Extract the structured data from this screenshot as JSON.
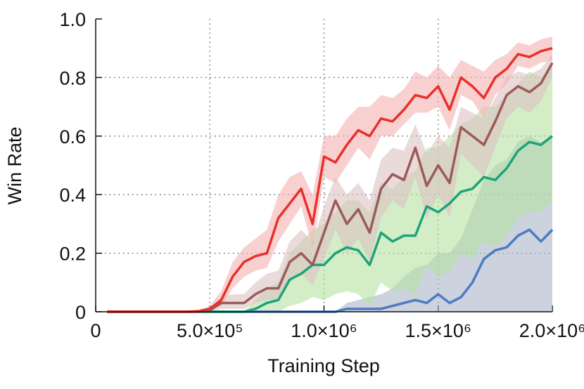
{
  "chart_data": {
    "type": "line",
    "xlabel": "Training Step",
    "ylabel": "Win Rate",
    "x": [
      50000,
      100000,
      150000,
      200000,
      250000,
      300000,
      350000,
      400000,
      450000,
      500000,
      550000,
      600000,
      650000,
      700000,
      750000,
      800000,
      850000,
      900000,
      950000,
      1000000,
      1050000,
      1100000,
      1150000,
      1200000,
      1250000,
      1300000,
      1350000,
      1400000,
      1450000,
      1500000,
      1550000,
      1600000,
      1650000,
      1700000,
      1750000,
      1800000,
      1850000,
      1900000,
      1950000,
      2000000
    ],
    "xlim": [
      0,
      2000000
    ],
    "xticks": [
      0,
      {
        "value": 500000,
        "label": "5.0×10⁵"
      },
      {
        "value": 1000000,
        "label": "1.0×10⁶"
      },
      {
        "value": 1500000,
        "label": "1.5×10⁶"
      },
      {
        "value": 2000000,
        "label": "2.0×10⁶"
      }
    ],
    "ylim": [
      0,
      1
    ],
    "yticks": [
      0,
      0.2,
      0.4,
      0.6,
      0.8,
      {
        "value": 1,
        "label": "1.0"
      }
    ],
    "grid": true,
    "series": [
      {
        "color": "#4c7cc0",
        "band_color": "#aab4c8",
        "values": [
          0,
          0,
          0,
          0,
          0,
          0,
          0,
          0,
          0,
          0,
          0,
          0,
          0,
          0,
          0,
          0,
          0,
          0,
          0,
          0,
          0,
          0.01,
          0.01,
          0.01,
          0.01,
          0.02,
          0.03,
          0.04,
          0.03,
          0.06,
          0.03,
          0.05,
          0.1,
          0.18,
          0.21,
          0.22,
          0.26,
          0.28,
          0.24,
          0.28
        ],
        "upper": [
          0,
          0,
          0,
          0,
          0,
          0,
          0,
          0,
          0,
          0,
          0,
          0,
          0,
          0,
          0,
          0,
          0,
          0,
          0,
          0,
          0,
          0.03,
          0.04,
          0.05,
          0.06,
          0.08,
          0.12,
          0.15,
          0.16,
          0.2,
          0.2,
          0.25,
          0.35,
          0.45,
          0.5,
          0.52,
          0.58,
          0.6,
          0.58,
          0.6
        ],
        "lower": [
          0,
          0,
          0,
          0,
          0,
          0,
          0,
          0,
          0,
          0,
          0,
          0,
          0,
          0,
          0,
          0,
          0,
          0,
          0,
          0,
          0,
          0,
          0,
          0,
          0,
          0,
          0,
          0,
          0,
          0,
          0,
          0,
          0,
          0,
          0,
          0,
          0,
          0,
          0,
          0
        ]
      },
      {
        "color": "#1ea37a",
        "band_color": "#b5e3a2",
        "values": [
          0,
          0,
          0,
          0,
          0,
          0,
          0,
          0,
          0,
          0,
          0,
          0,
          0,
          0.01,
          0.03,
          0.04,
          0.11,
          0.13,
          0.16,
          0.16,
          0.2,
          0.22,
          0.21,
          0.16,
          0.27,
          0.24,
          0.26,
          0.26,
          0.36,
          0.34,
          0.37,
          0.41,
          0.42,
          0.46,
          0.45,
          0.49,
          0.55,
          0.58,
          0.57,
          0.6
        ],
        "upper": [
          0,
          0,
          0,
          0,
          0,
          0,
          0,
          0,
          0,
          0,
          0,
          0,
          0,
          0.04,
          0.08,
          0.1,
          0.2,
          0.24,
          0.28,
          0.3,
          0.34,
          0.38,
          0.38,
          0.34,
          0.44,
          0.42,
          0.46,
          0.48,
          0.56,
          0.56,
          0.6,
          0.64,
          0.66,
          0.7,
          0.7,
          0.74,
          0.78,
          0.82,
          0.8,
          0.84
        ],
        "lower": [
          0,
          0,
          0,
          0,
          0,
          0,
          0,
          0,
          0,
          0,
          0,
          0,
          0,
          0,
          0,
          0,
          0.02,
          0.03,
          0.05,
          0.04,
          0.06,
          0.07,
          0.06,
          0.02,
          0.1,
          0.07,
          0.08,
          0.06,
          0.16,
          0.12,
          0.14,
          0.2,
          0.18,
          0.24,
          0.22,
          0.26,
          0.32,
          0.34,
          0.34,
          0.38
        ]
      },
      {
        "color": "#9c5a5a",
        "band_color": "#dcc2c2",
        "values": [
          0,
          0,
          0,
          0,
          0,
          0,
          0,
          0,
          0,
          0.005,
          0.03,
          0.03,
          0.03,
          0.06,
          0.08,
          0.08,
          0.17,
          0.2,
          0.16,
          0.27,
          0.38,
          0.3,
          0.35,
          0.27,
          0.42,
          0.47,
          0.45,
          0.56,
          0.43,
          0.5,
          0.44,
          0.63,
          0.6,
          0.57,
          0.65,
          0.74,
          0.77,
          0.75,
          0.78,
          0.85
        ],
        "upper": [
          0,
          0,
          0,
          0,
          0,
          0,
          0,
          0,
          0,
          0.01,
          0.05,
          0.06,
          0.06,
          0.1,
          0.13,
          0.14,
          0.24,
          0.28,
          0.24,
          0.36,
          0.46,
          0.4,
          0.44,
          0.38,
          0.52,
          0.56,
          0.55,
          0.64,
          0.54,
          0.6,
          0.56,
          0.7,
          0.68,
          0.66,
          0.73,
          0.8,
          0.82,
          0.81,
          0.83,
          0.88
        ],
        "lower": [
          0,
          0,
          0,
          0,
          0,
          0,
          0,
          0,
          0,
          0,
          0.01,
          0.01,
          0.01,
          0.03,
          0.04,
          0.04,
          0.1,
          0.13,
          0.09,
          0.18,
          0.28,
          0.2,
          0.25,
          0.17,
          0.32,
          0.38,
          0.35,
          0.46,
          0.32,
          0.4,
          0.32,
          0.54,
          0.5,
          0.46,
          0.56,
          0.66,
          0.7,
          0.68,
          0.72,
          0.8
        ]
      },
      {
        "color": "#e8302a",
        "band_color": "#f4b0b0",
        "values": [
          0,
          0,
          0,
          0,
          0,
          0,
          0,
          0,
          0.002,
          0.01,
          0.04,
          0.12,
          0.17,
          0.19,
          0.2,
          0.32,
          0.37,
          0.42,
          0.3,
          0.53,
          0.51,
          0.57,
          0.62,
          0.6,
          0.66,
          0.65,
          0.69,
          0.74,
          0.73,
          0.77,
          0.69,
          0.8,
          0.77,
          0.73,
          0.8,
          0.83,
          0.88,
          0.87,
          0.89,
          0.9
        ],
        "upper": [
          0,
          0,
          0,
          0,
          0,
          0,
          0,
          0,
          0.005,
          0.02,
          0.07,
          0.17,
          0.22,
          0.25,
          0.28,
          0.4,
          0.46,
          0.48,
          0.4,
          0.6,
          0.6,
          0.66,
          0.7,
          0.7,
          0.74,
          0.73,
          0.76,
          0.82,
          0.8,
          0.84,
          0.8,
          0.86,
          0.84,
          0.82,
          0.86,
          0.88,
          0.92,
          0.91,
          0.93,
          0.94
        ],
        "lower": [
          0,
          0,
          0,
          0,
          0,
          0,
          0,
          0,
          0,
          0.005,
          0.02,
          0.08,
          0.12,
          0.14,
          0.15,
          0.24,
          0.3,
          0.36,
          0.22,
          0.46,
          0.44,
          0.5,
          0.56,
          0.52,
          0.6,
          0.6,
          0.64,
          0.68,
          0.68,
          0.7,
          0.62,
          0.74,
          0.72,
          0.66,
          0.74,
          0.78,
          0.84,
          0.83,
          0.85,
          0.86
        ]
      }
    ]
  }
}
